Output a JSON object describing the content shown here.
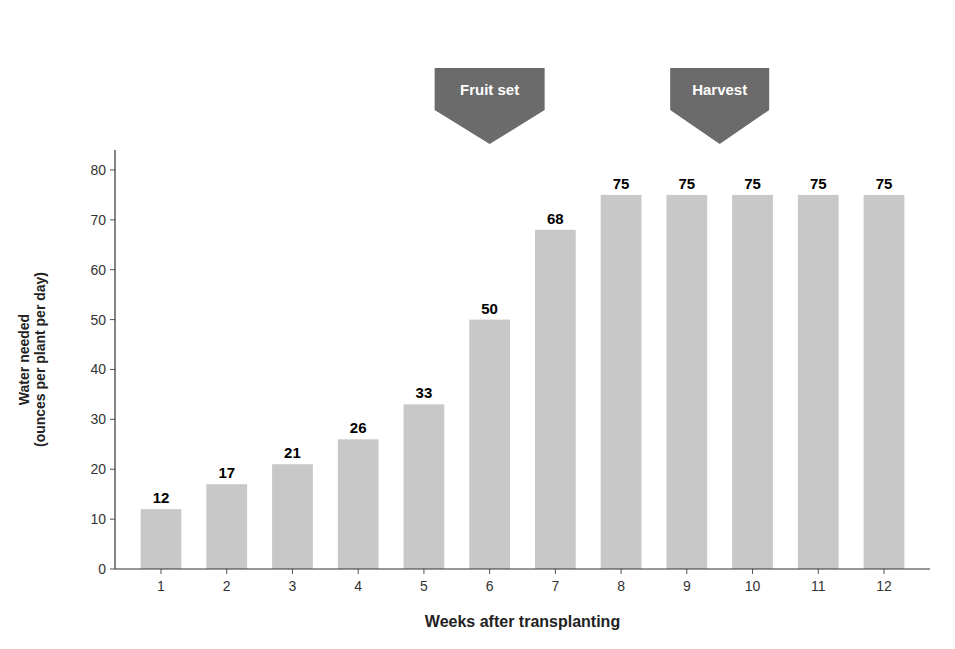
{
  "chart_data": {
    "type": "bar",
    "x": [
      1,
      2,
      3,
      4,
      5,
      6,
      7,
      8,
      9,
      10,
      11,
      12
    ],
    "values": [
      12,
      17,
      21,
      26,
      33,
      50,
      68,
      75,
      75,
      75,
      75,
      75
    ],
    "color": "#c8c8c8",
    "xlabel": "Weeks after transplanting",
    "ylabel": "Water needed\n(ounces per plant per day)",
    "xlim": [
      0.3,
      12.7
    ],
    "xticks": [
      1,
      2,
      3,
      4,
      5,
      6,
      7,
      8,
      9,
      10,
      11,
      12
    ],
    "ylim": [
      0,
      84
    ],
    "yticks": [
      0,
      10,
      20,
      30,
      40,
      50,
      60,
      70,
      80
    ],
    "grid": false,
    "data_labels": true,
    "annotations": [
      {
        "text": "Fruit set",
        "x": 6,
        "color": "#6b6b6b"
      },
      {
        "text": "Harvest",
        "x": 9.5,
        "color": "#6b6b6b"
      }
    ]
  }
}
